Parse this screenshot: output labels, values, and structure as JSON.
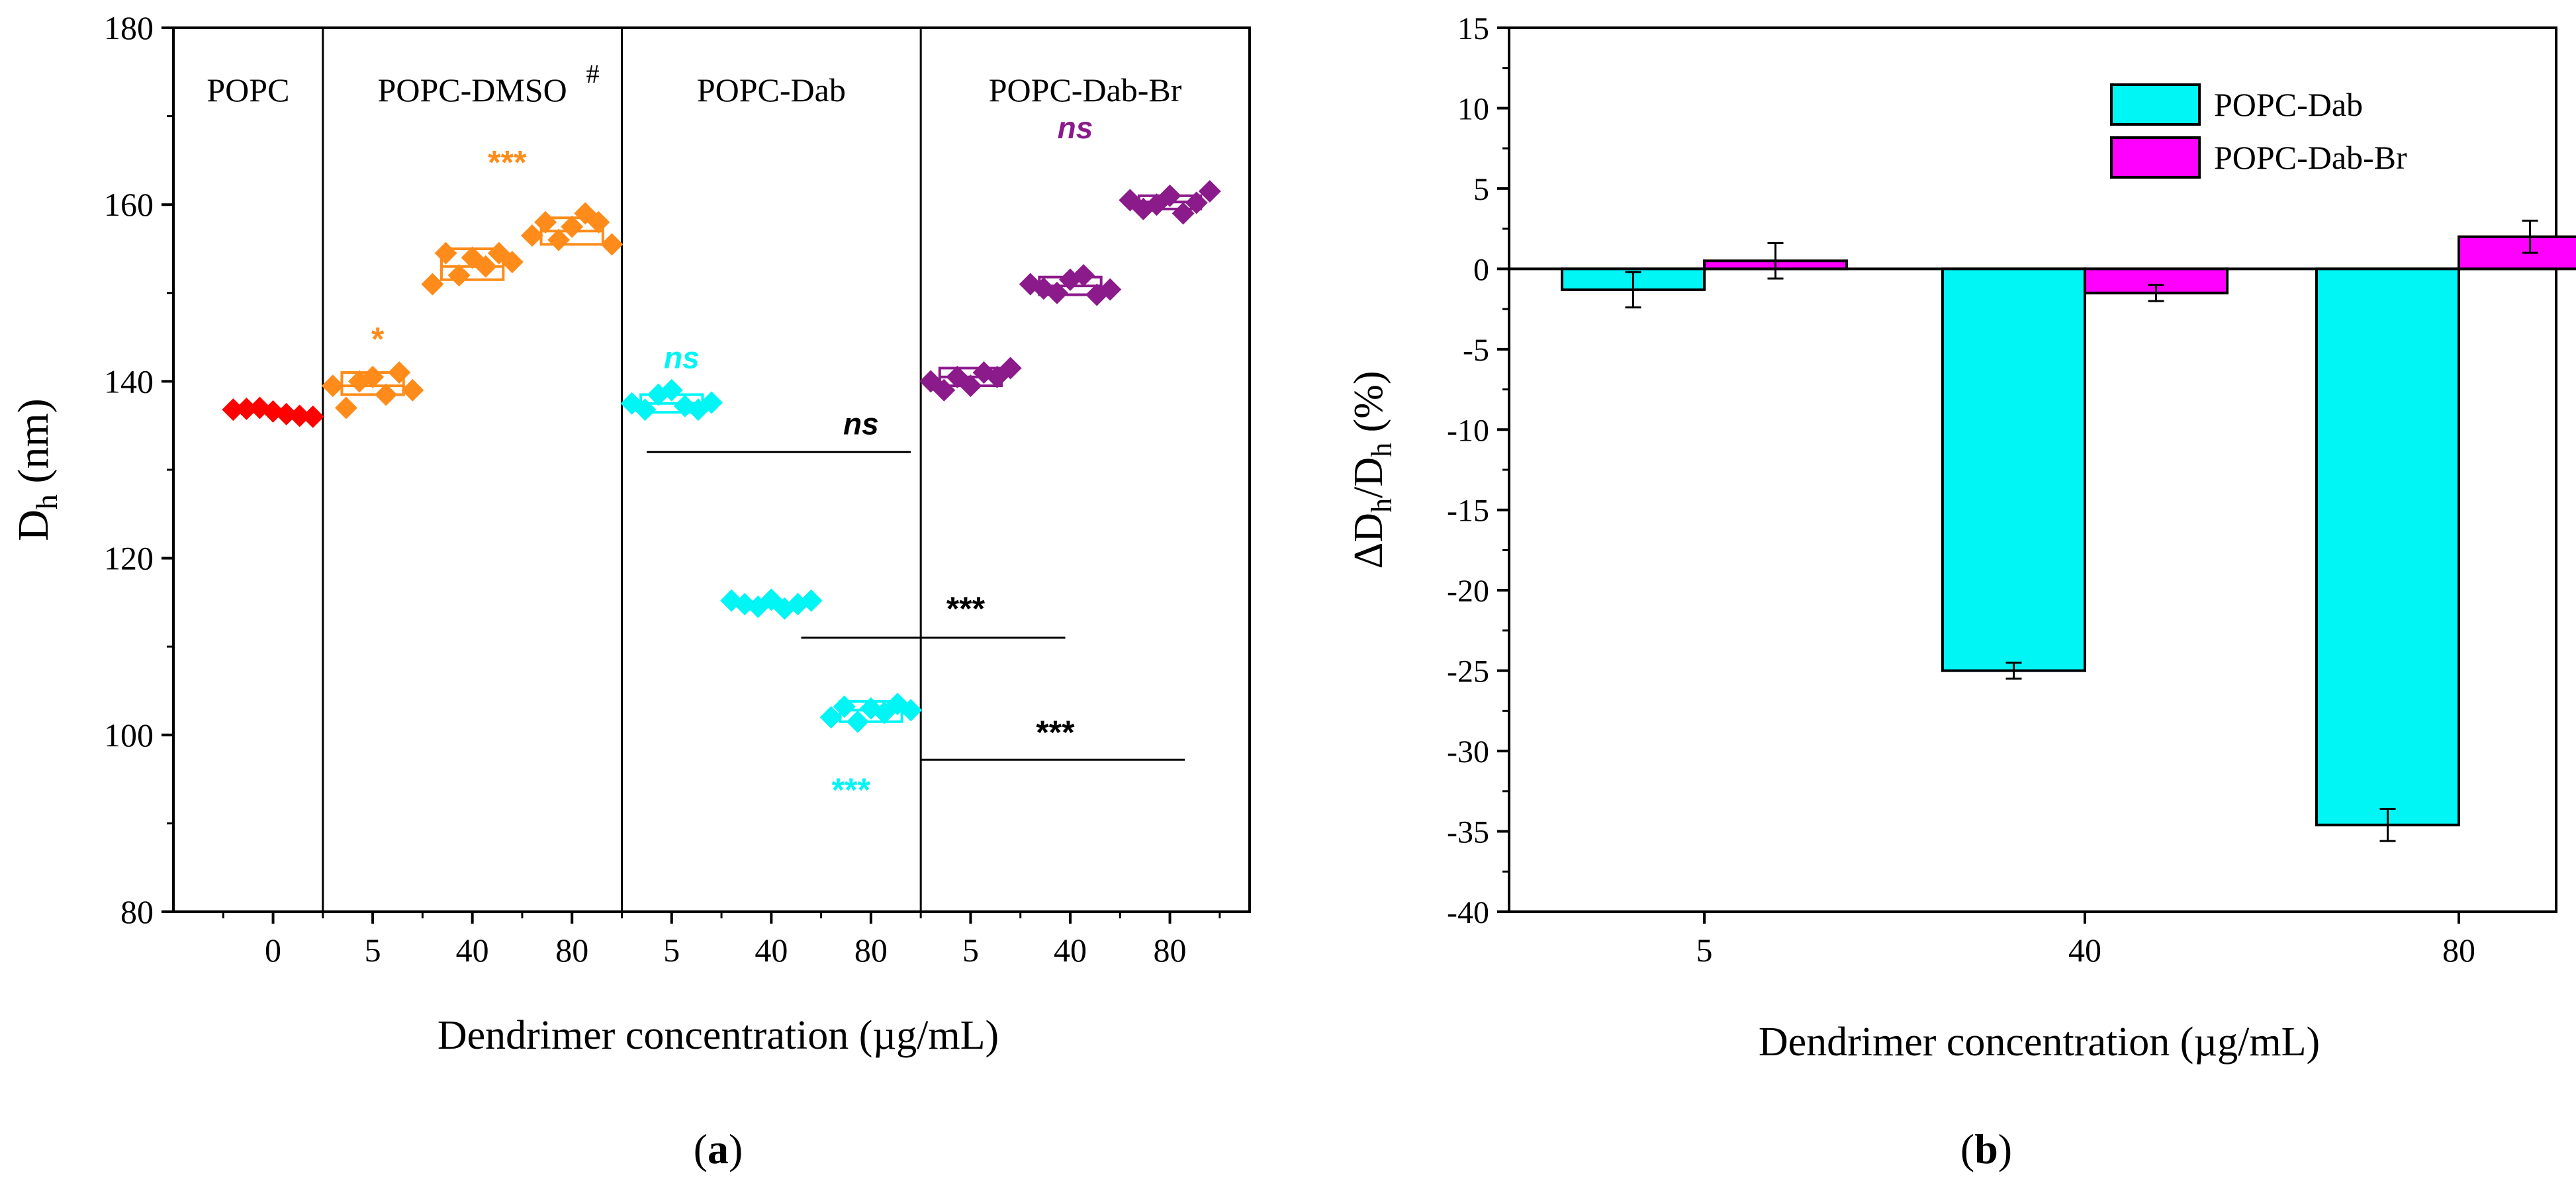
{
  "colors": {
    "popc": "#ff0000",
    "dmso": "#ff8c1a",
    "dab": "#00f5f5",
    "dabbr": "#8b1a8b",
    "magenta": "#ff00ff",
    "axis": "#000000"
  },
  "chart_data": [
    {
      "id": "a",
      "type": "scatter",
      "panel_label": "a",
      "xlabel": "Dendrimer concentration (µg/mL)",
      "ylabel": "D",
      "ylabel_sub": "h",
      "ylabel_unit": " (nm)",
      "ylim": [
        80,
        180
      ],
      "yticks": [
        80,
        100,
        120,
        140,
        160,
        180
      ],
      "grid": false,
      "categories": [
        "0",
        "5",
        "40",
        "80",
        "5",
        "40",
        "80",
        "5",
        "40",
        "80"
      ],
      "groups": [
        {
          "name": "POPC",
          "color_key": "popc",
          "span": [
            0,
            0
          ]
        },
        {
          "name": "POPC-DMSO",
          "superscript": "#",
          "color_key": "dmso",
          "span": [
            1,
            3
          ]
        },
        {
          "name": "POPC-Dab",
          "color_key": "dab",
          "span": [
            4,
            6
          ]
        },
        {
          "name": "POPC-Dab-Br",
          "color_key": "dabbr",
          "span": [
            7,
            9
          ]
        }
      ],
      "series": [
        {
          "group": "POPC",
          "index": 0,
          "values": [
            136.8,
            136.9,
            137.0,
            136.6,
            136.3,
            136.1,
            136.0
          ],
          "box": null
        },
        {
          "group": "POPC-DMSO",
          "index": 1,
          "values": [
            139.5,
            137.0,
            140.0,
            140.5,
            138.5,
            141.0,
            139.0
          ],
          "box": [
            138.5,
            139.5,
            141.0
          ]
        },
        {
          "group": "POPC-DMSO",
          "index": 2,
          "values": [
            151.0,
            154.5,
            152.0,
            154.0,
            153.0,
            154.5,
            153.5
          ],
          "box": [
            151.5,
            153.0,
            155.0
          ]
        },
        {
          "group": "POPC-DMSO",
          "index": 3,
          "values": [
            156.5,
            158.0,
            156.0,
            157.5,
            159.0,
            158.0,
            155.5
          ],
          "box": [
            155.5,
            157.0,
            158.5
          ]
        },
        {
          "group": "POPC-Dab",
          "index": 4,
          "values": [
            137.5,
            136.8,
            138.5,
            139.0,
            137.2,
            136.8,
            137.6
          ],
          "box": [
            136.5,
            137.5,
            138.5
          ]
        },
        {
          "group": "POPC-Dab",
          "index": 5,
          "values": [
            115.2,
            114.8,
            114.5,
            115.3,
            114.3,
            114.8,
            115.2
          ],
          "box": null
        },
        {
          "group": "POPC-Dab",
          "index": 6,
          "values": [
            102.0,
            103.2,
            101.5,
            103.0,
            102.5,
            103.5,
            102.8
          ],
          "box": [
            101.5,
            102.8,
            103.8
          ]
        },
        {
          "group": "POPC-Dab-Br",
          "index": 7,
          "values": [
            140.0,
            139.0,
            140.5,
            139.5,
            141.0,
            140.5,
            141.5
          ],
          "box": [
            139.5,
            140.5,
            141.5
          ]
        },
        {
          "group": "POPC-Dab-Br",
          "index": 8,
          "values": [
            151.0,
            150.5,
            150.0,
            151.5,
            152.0,
            149.8,
            150.4
          ],
          "box": [
            149.8,
            150.8,
            151.8
          ]
        },
        {
          "group": "POPC-Dab-Br",
          "index": 9,
          "values": [
            160.5,
            159.5,
            160.0,
            161.0,
            159.0,
            160.2,
            161.5
          ],
          "box": [
            159.5,
            160.3,
            161.0
          ]
        }
      ],
      "annotations": [
        {
          "text": "*",
          "color_key": "dmso",
          "x": 1.05,
          "y": 143.5,
          "italic": false
        },
        {
          "text": "***",
          "color_key": "dmso",
          "x": 2.35,
          "y": 163.5,
          "italic": false
        },
        {
          "text": "ns",
          "color_key": "dab",
          "x": 4.1,
          "y": 141.5,
          "italic": true
        },
        {
          "text": "***",
          "color_key": "dab",
          "x": 5.8,
          "y": 92.5,
          "italic": false
        },
        {
          "text": "ns",
          "color_key": "dabbr",
          "x": 8.05,
          "y": 167.5,
          "italic": true
        },
        {
          "text": "ns",
          "color_key": "axis",
          "x": 5.9,
          "y": 134.0,
          "italic": true
        },
        {
          "text": "***",
          "color_key": "axis",
          "x": 6.95,
          "y": 113.0,
          "italic": false
        },
        {
          "text": "***",
          "color_key": "axis",
          "x": 7.85,
          "y": 99.0,
          "italic": false
        }
      ],
      "significance_lines": [
        {
          "x1": 4.75,
          "x2": 7.4,
          "y": 132
        },
        {
          "x1": 6.3,
          "x2": 8.95,
          "y": 111
        },
        {
          "x1": 7.5,
          "x2": 10.15,
          "y": 97.2
        }
      ]
    },
    {
      "id": "b",
      "type": "bar",
      "panel_label": "b",
      "xlabel": "Dendrimer concentration (µg/mL)",
      "ylabel": "ΔD",
      "ylabel_sub": "h",
      "ylabel_mid": "/D",
      "ylabel_sub2": "h",
      "ylabel_unit": " (%)",
      "ylim": [
        -40,
        15
      ],
      "yticks": [
        -40,
        -35,
        -30,
        -25,
        -20,
        -15,
        -10,
        -5,
        0,
        5,
        10,
        15
      ],
      "grid": false,
      "categories": [
        "5",
        "40",
        "80"
      ],
      "series": [
        {
          "name": "POPC-Dab",
          "color_key": "dab",
          "values": [
            -1.3,
            -25.0,
            -34.6
          ],
          "errors": [
            1.1,
            0.5,
            1.0
          ]
        },
        {
          "name": "POPC-Dab-Br",
          "color_key": "magenta",
          "values": [
            0.5,
            -1.5,
            2.0
          ],
          "errors": [
            1.1,
            0.5,
            1.0
          ]
        }
      ],
      "legend_position": "top-right"
    }
  ]
}
